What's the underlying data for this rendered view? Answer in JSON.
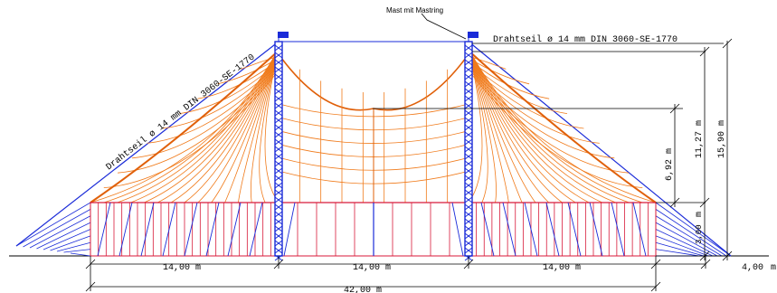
{
  "labels": {
    "mast_callout": "Mast mit Mastring",
    "rope_right": "Drahtseil ø 14 mm DIN 3060-SE-1770",
    "rope_left": "Drahtseil ø 14 mm DIN 3060-SE-1770"
  },
  "dimensions": {
    "height_total": "15,90 m",
    "height_mast": "11,27 m",
    "height_center": "6,92 m",
    "height_wall_unit": "m",
    "height_wall": "3,00",
    "span_left": "14,00 m",
    "span_center": "14,00 m",
    "span_right": "14,00 m",
    "overhang": "4,00",
    "overhang_unit": "m",
    "total_width": "42,00 m"
  },
  "colors": {
    "rope": "#1a2bd8",
    "mast": "#1a2bd8",
    "canvas": "#f07a1a",
    "canvas_dark": "#e0600a",
    "wall": "#d81a3a",
    "dimension": "#000000",
    "flag": "#1a2bd8"
  }
}
